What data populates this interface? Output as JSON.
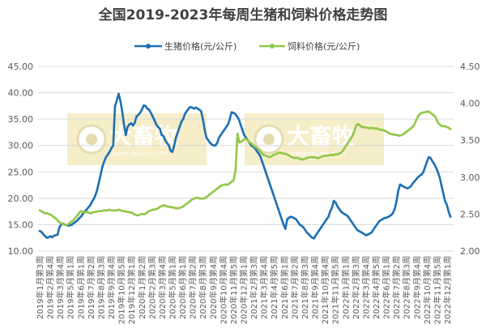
{
  "chart_data": {
    "type": "line",
    "title": "全国2019-2023年每周生猪和饲料价格走势图",
    "legend_position": "top",
    "grid": "horizontal",
    "watermark": {
      "brand": "大畜牧",
      "url": "www.dxumu.com",
      "color": "#f5eec9"
    },
    "y_left": {
      "range": [
        10,
        45
      ],
      "ticks": [
        "10.00",
        "15.00",
        "20.00",
        "25.00",
        "30.00",
        "35.00",
        "40.00",
        "45.00"
      ]
    },
    "y_right": {
      "range": [
        2.0,
        4.5
      ],
      "ticks": [
        "2.00",
        "2.50",
        "3.00",
        "3.50",
        "4.00",
        "4.50"
      ]
    },
    "x_tick_labels": [
      "2019年1月第3周",
      "2019年2月第4周",
      "2019年3月第4周",
      "2019年5月第1周",
      "2019年6月第1周",
      "2019年7月第2周",
      "2019年8月第3周",
      "2019年9月第4周",
      "2019年10月第5周",
      "2019年12月第1周",
      "2020年1月第2周",
      "2020年2月第3周",
      "2020年3月第4周",
      "2020年5月第1周",
      "2020年6月第1周",
      "2020年7月第2周",
      "2020年8月第3周",
      "2020年9月第4周",
      "2020年10月第4周",
      "2020年11月第5周",
      "2020年12月第1周",
      "2021年2月第3周",
      "2021年3月第4周",
      "2021年4月第5周",
      "2021年6月第1周",
      "2021年7月第2周",
      "2021年8月第3周",
      "2021年9月第4周",
      "2021年10月第4周",
      "2021年11月第5周",
      "2022年1月第1周",
      "2022年2月第3周",
      "2022年3月第4周",
      "2022年4月第5周",
      "2022年6月第1周",
      "2022年7月第2周",
      "2022年8月第3周",
      "2022年9月第4周",
      "2022年10月第4周",
      "2022年11月第5周",
      "2022年12月第1周"
    ],
    "series": [
      {
        "name": "生猪价格(元/公斤)",
        "axis": "left",
        "color": "#1c70b4",
        "values": [
          13.8,
          13.6,
          13.2,
          12.8,
          12.5,
          12.6,
          12.8,
          12.6,
          12.9,
          13.0,
          13.1,
          14.5,
          15.0,
          15.2,
          15.0,
          14.9,
          14.8,
          14.9,
          15.0,
          15.3,
          15.5,
          15.8,
          16.2,
          16.5,
          17.0,
          17.4,
          17.8,
          18.2,
          18.6,
          19.2,
          19.8,
          20.5,
          21.5,
          23.0,
          24.5,
          26.0,
          27.0,
          27.8,
          28.3,
          28.8,
          29.5,
          30.0,
          37.5,
          38.5,
          39.8,
          38.5,
          36.5,
          34.0,
          32.0,
          33.5,
          34.0,
          34.2,
          33.8,
          34.3,
          35.5,
          35.8,
          36.2,
          36.8,
          37.6,
          37.5,
          37.0,
          36.8,
          36.2,
          35.5,
          34.8,
          34.0,
          33.5,
          33.2,
          32.0,
          31.8,
          31.0,
          30.5,
          30.0,
          29.0,
          28.8,
          30.0,
          31.5,
          32.5,
          33.5,
          34.5,
          35.0,
          36.0,
          36.5,
          37.0,
          37.3,
          37.2,
          37.0,
          37.2,
          37.0,
          36.8,
          36.5,
          35.0,
          33.0,
          31.5,
          31.0,
          30.5,
          30.2,
          30.0,
          30.0,
          30.5,
          31.5,
          32.0,
          32.5,
          33.0,
          33.5,
          34.0,
          35.0,
          36.3,
          36.2,
          36.0,
          35.5,
          35.0,
          34.0,
          33.0,
          32.0,
          31.5,
          31.0,
          30.5,
          30.0,
          29.8,
          29.5,
          29.0,
          28.5,
          28.0,
          27.0,
          26.0,
          25.0,
          24.0,
          23.0,
          22.0,
          21.0,
          20.0,
          19.0,
          18.0,
          17.0,
          16.0,
          15.0,
          14.2,
          16.0,
          16.3,
          16.5,
          16.4,
          16.2,
          16.0,
          15.5,
          15.0,
          14.8,
          14.5,
          14.0,
          13.5,
          13.2,
          12.8,
          12.5,
          12.4,
          13.0,
          13.5,
          14.0,
          14.5,
          15.0,
          15.5,
          16.0,
          16.5,
          17.5,
          18.2,
          19.5,
          19.2,
          18.5,
          18.0,
          17.5,
          17.2,
          17.0,
          16.8,
          16.5,
          16.0,
          15.5,
          15.0,
          14.5,
          14.0,
          13.8,
          13.6,
          13.4,
          13.2,
          13.0,
          13.1,
          13.3,
          13.5,
          14.0,
          14.5,
          15.0,
          15.5,
          15.8,
          16.0,
          16.2,
          16.3,
          16.4,
          16.6,
          16.8,
          17.2,
          18.0,
          19.5,
          21.5,
          22.6,
          22.4,
          22.2,
          22.0,
          21.9,
          22.0,
          22.3,
          22.8,
          23.2,
          23.6,
          24.0,
          24.3,
          24.5,
          25.0,
          26.0,
          27.0,
          27.8,
          27.6,
          27.0,
          26.5,
          25.8,
          25.0,
          24.0,
          22.5,
          21.0,
          19.5,
          18.8,
          17.5,
          16.5
        ]
      },
      {
        "name": "饲料价格(元/公斤)",
        "axis": "right",
        "color": "#92c74a",
        "values": [
          2.55,
          2.54,
          2.52,
          2.51,
          2.51,
          2.5,
          2.49,
          2.47,
          2.45,
          2.43,
          2.4,
          2.38,
          2.37,
          2.36,
          2.35,
          2.36,
          2.38,
          2.4,
          2.42,
          2.45,
          2.48,
          2.52,
          2.54,
          2.53,
          2.52,
          2.53,
          2.52,
          2.51,
          2.52,
          2.53,
          2.53,
          2.54,
          2.54,
          2.54,
          2.55,
          2.55,
          2.55,
          2.56,
          2.55,
          2.55,
          2.55,
          2.55,
          2.56,
          2.55,
          2.54,
          2.54,
          2.53,
          2.53,
          2.52,
          2.52,
          2.5,
          2.49,
          2.48,
          2.49,
          2.5,
          2.5,
          2.5,
          2.52,
          2.54,
          2.55,
          2.56,
          2.56,
          2.57,
          2.58,
          2.6,
          2.61,
          2.62,
          2.61,
          2.6,
          2.6,
          2.59,
          2.59,
          2.58,
          2.58,
          2.58,
          2.59,
          2.6,
          2.62,
          2.64,
          2.66,
          2.68,
          2.7,
          2.71,
          2.72,
          2.72,
          2.71,
          2.71,
          2.71,
          2.72,
          2.74,
          2.76,
          2.78,
          2.8,
          2.82,
          2.84,
          2.86,
          2.88,
          2.89,
          2.9,
          2.9,
          2.9,
          2.92,
          2.94,
          2.96,
          3.1,
          3.59,
          3.47,
          3.48,
          3.5,
          3.52,
          3.51,
          3.48,
          3.46,
          3.44,
          3.42,
          3.4,
          3.38,
          3.35,
          3.32,
          3.3,
          3.29,
          3.28,
          3.27,
          3.28,
          3.3,
          3.31,
          3.32,
          3.33,
          3.33,
          3.32,
          3.32,
          3.31,
          3.3,
          3.28,
          3.27,
          3.26,
          3.26,
          3.26,
          3.25,
          3.24,
          3.24,
          3.25,
          3.26,
          3.27,
          3.27,
          3.27,
          3.27,
          3.26,
          3.26,
          3.27,
          3.28,
          3.29,
          3.29,
          3.29,
          3.3,
          3.3,
          3.3,
          3.31,
          3.31,
          3.32,
          3.33,
          3.36,
          3.4,
          3.44,
          3.48,
          3.52,
          3.56,
          3.62,
          3.7,
          3.72,
          3.7,
          3.68,
          3.68,
          3.67,
          3.67,
          3.66,
          3.67,
          3.66,
          3.66,
          3.66,
          3.65,
          3.64,
          3.64,
          3.63,
          3.62,
          3.6,
          3.59,
          3.58,
          3.58,
          3.57,
          3.57,
          3.56,
          3.57,
          3.58,
          3.6,
          3.62,
          3.64,
          3.66,
          3.68,
          3.72,
          3.78,
          3.83,
          3.86,
          3.87,
          3.88,
          3.88,
          3.89,
          3.88,
          3.86,
          3.84,
          3.82,
          3.76,
          3.72,
          3.7,
          3.69,
          3.69,
          3.68,
          3.67,
          3.65
        ]
      }
    ]
  }
}
